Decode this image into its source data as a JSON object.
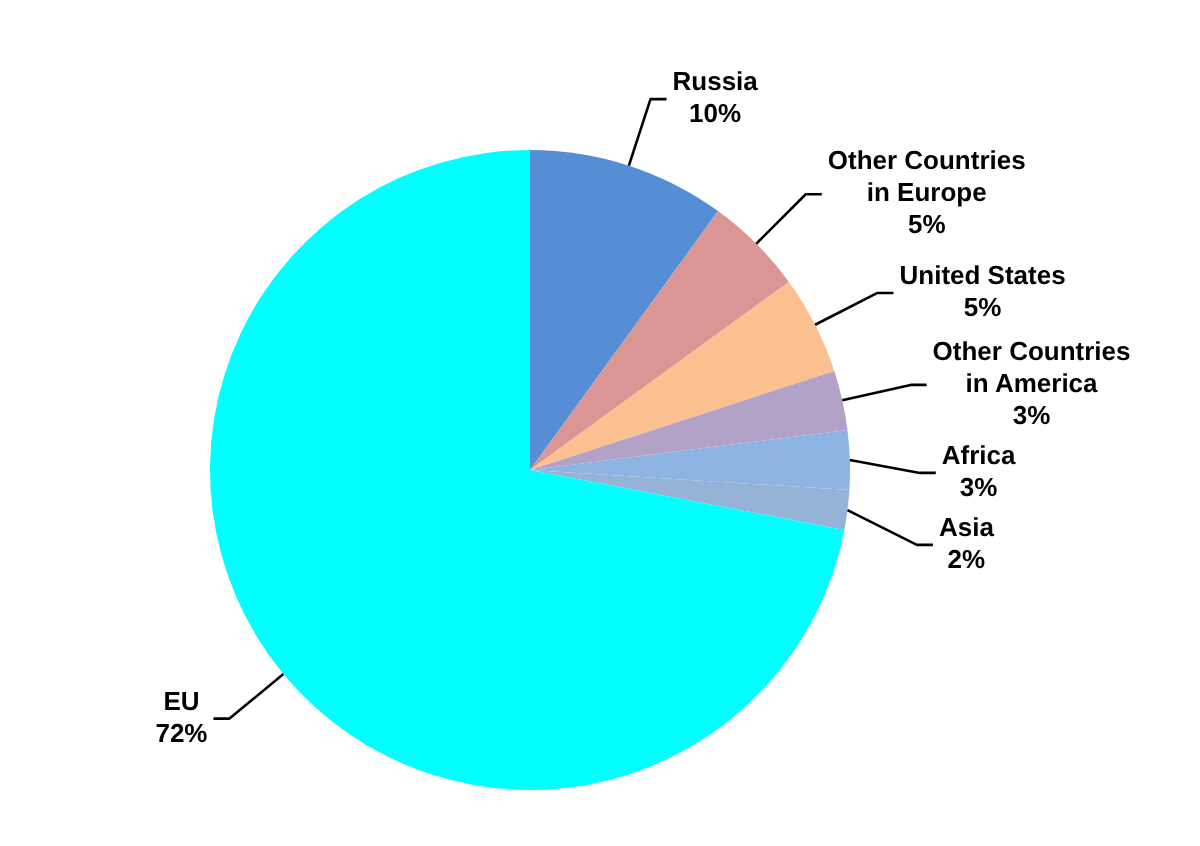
{
  "chart_data": {
    "type": "pie",
    "categories": [
      "Russia",
      "Other Countries in Europe",
      "United States",
      "Other Countries in America",
      "Africa",
      "Asia",
      "EU"
    ],
    "values": [
      10,
      5,
      5,
      3,
      3,
      2,
      72
    ],
    "value_labels": [
      "10%",
      "5%",
      "5%",
      "3%",
      "3%",
      "2%",
      "72%"
    ],
    "colors": [
      "#558ed5",
      "#d99694",
      "#fac090",
      "#b3a2c7",
      "#8db4e2",
      "#95b3d7",
      "#00ffff"
    ]
  }
}
